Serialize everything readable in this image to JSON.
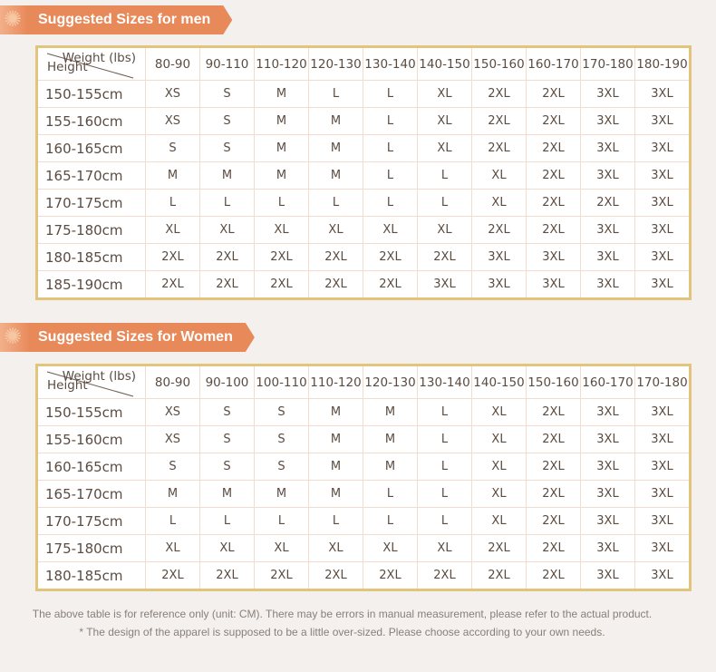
{
  "men": {
    "title": "Suggested Sizes for men",
    "corner_weight": "Weight (lbs)",
    "corner_height": "Height",
    "columns": [
      "80-90",
      "90-110",
      "110-120",
      "120-130",
      "130-140",
      "140-150",
      "150-160",
      "160-170",
      "170-180",
      "180-190"
    ],
    "rows": [
      {
        "height": "150-155cm",
        "sizes": [
          "XS",
          "S",
          "M",
          "L",
          "L",
          "XL",
          "2XL",
          "2XL",
          "3XL",
          "3XL"
        ]
      },
      {
        "height": "155-160cm",
        "sizes": [
          "XS",
          "S",
          "M",
          "M",
          "L",
          "XL",
          "2XL",
          "2XL",
          "3XL",
          "3XL"
        ]
      },
      {
        "height": "160-165cm",
        "sizes": [
          "S",
          "S",
          "M",
          "M",
          "L",
          "XL",
          "2XL",
          "2XL",
          "3XL",
          "3XL"
        ]
      },
      {
        "height": "165-170cm",
        "sizes": [
          "M",
          "M",
          "M",
          "M",
          "L",
          "L",
          "XL",
          "2XL",
          "3XL",
          "3XL"
        ]
      },
      {
        "height": "170-175cm",
        "sizes": [
          "L",
          "L",
          "L",
          "L",
          "L",
          "L",
          "XL",
          "2XL",
          "2XL",
          "3XL"
        ]
      },
      {
        "height": "175-180cm",
        "sizes": [
          "XL",
          "XL",
          "XL",
          "XL",
          "XL",
          "XL",
          "2XL",
          "2XL",
          "3XL",
          "3XL"
        ]
      },
      {
        "height": "180-185cm",
        "sizes": [
          "2XL",
          "2XL",
          "2XL",
          "2XL",
          "2XL",
          "2XL",
          "3XL",
          "3XL",
          "3XL",
          "3XL"
        ]
      },
      {
        "height": "185-190cm",
        "sizes": [
          "2XL",
          "2XL",
          "2XL",
          "2XL",
          "2XL",
          "3XL",
          "3XL",
          "3XL",
          "3XL",
          "3XL"
        ]
      }
    ]
  },
  "women": {
    "title": "Suggested Sizes for Women",
    "corner_weight": "Weight (lbs)",
    "corner_height": "Height",
    "columns": [
      "80-90",
      "90-100",
      "100-110",
      "110-120",
      "120-130",
      "130-140",
      "140-150",
      "150-160",
      "160-170",
      "170-180"
    ],
    "rows": [
      {
        "height": "150-155cm",
        "sizes": [
          "XS",
          "S",
          "S",
          "M",
          "M",
          "L",
          "XL",
          "2XL",
          "3XL",
          "3XL"
        ]
      },
      {
        "height": "155-160cm",
        "sizes": [
          "XS",
          "S",
          "S",
          "M",
          "M",
          "L",
          "XL",
          "2XL",
          "3XL",
          "3XL"
        ]
      },
      {
        "height": "160-165cm",
        "sizes": [
          "S",
          "S",
          "S",
          "M",
          "M",
          "L",
          "XL",
          "2XL",
          "3XL",
          "3XL"
        ]
      },
      {
        "height": "165-170cm",
        "sizes": [
          "M",
          "M",
          "M",
          "M",
          "L",
          "L",
          "XL",
          "2XL",
          "3XL",
          "3XL"
        ]
      },
      {
        "height": "170-175cm",
        "sizes": [
          "L",
          "L",
          "L",
          "L",
          "L",
          "L",
          "XL",
          "2XL",
          "3XL",
          "3XL"
        ]
      },
      {
        "height": "175-180cm",
        "sizes": [
          "XL",
          "XL",
          "XL",
          "XL",
          "XL",
          "XL",
          "2XL",
          "2XL",
          "3XL",
          "3XL"
        ]
      },
      {
        "height": "180-185cm",
        "sizes": [
          "2XL",
          "2XL",
          "2XL",
          "2XL",
          "2XL",
          "2XL",
          "2XL",
          "2XL",
          "3XL",
          "3XL"
        ]
      }
    ]
  },
  "notes": [
    "The above table is for reference only (unit: CM). There may be errors in manual measurement, please refer to the actual product.",
    "* The design of the apparel is supposed to be a little over-sized.  Please choose according to your own needs."
  ]
}
